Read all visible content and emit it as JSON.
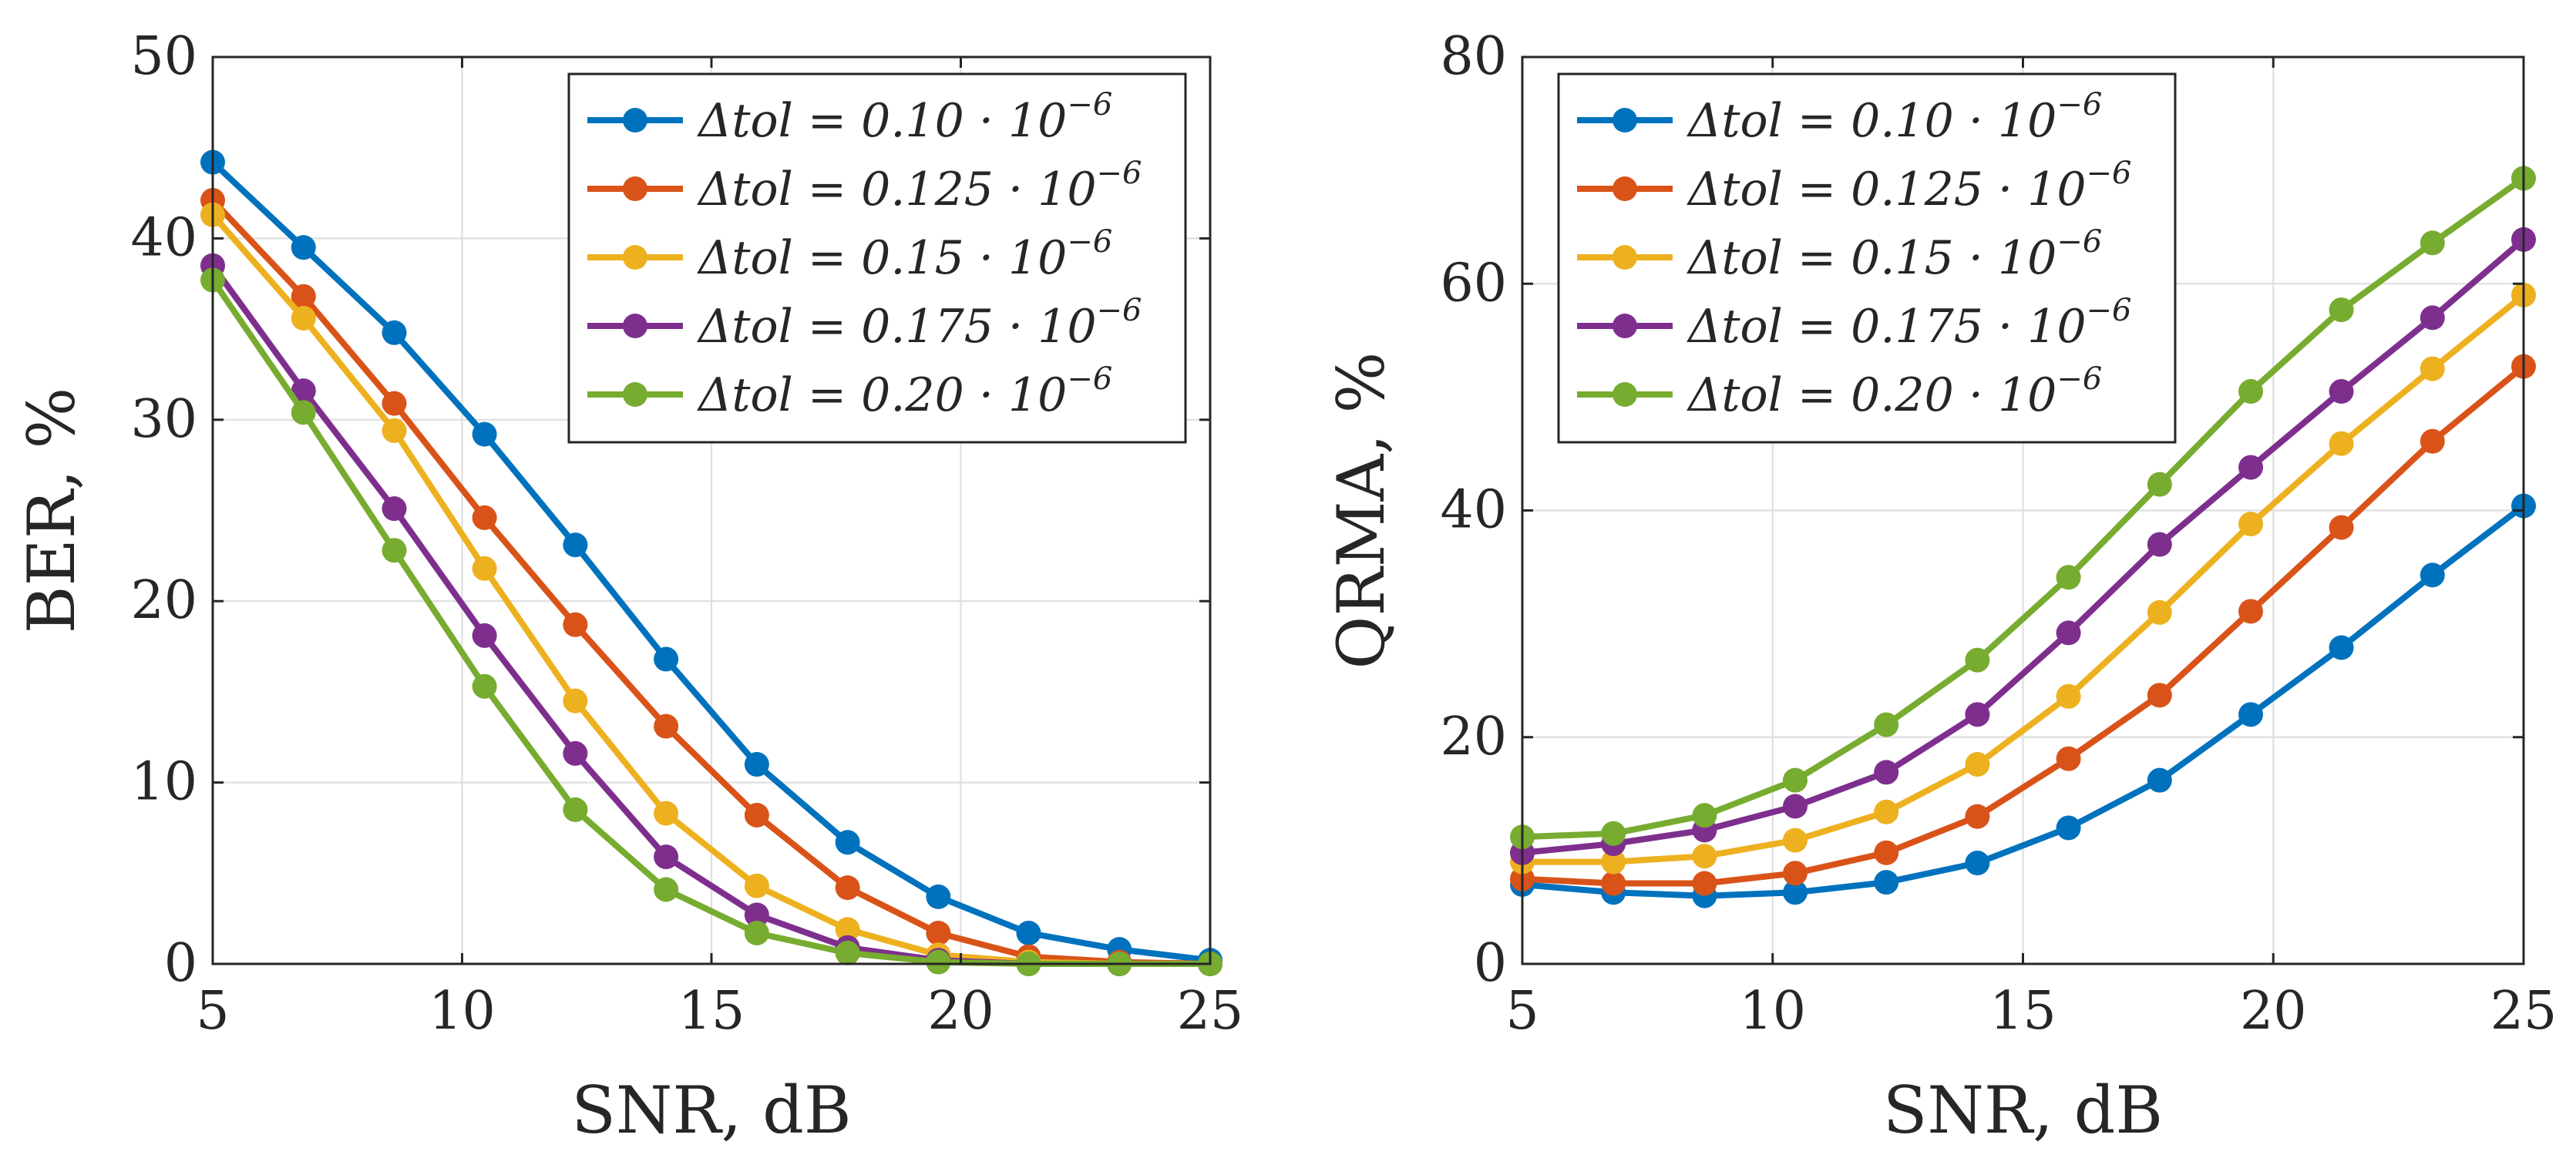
{
  "chart_data": [
    {
      "type": "line",
      "xlabel": "SNR, dB",
      "ylabel": "BER, %",
      "xlim": [
        5,
        25
      ],
      "ylim": [
        0,
        50
      ],
      "xticks": [
        "5",
        "10",
        "15",
        "20",
        "25"
      ],
      "yticks": [
        "0",
        "10",
        "20",
        "30",
        "40",
        "50"
      ],
      "grid": true,
      "legend_position": "top-right",
      "x": [
        5,
        6.82,
        8.64,
        10.45,
        12.27,
        14.09,
        15.91,
        17.73,
        19.55,
        21.36,
        23.18,
        25
      ],
      "series": [
        {
          "name": "Δtol = 0.10 · 10",
          "exp": "−6",
          "color": "#0072BD",
          "values": [
            44.2,
            39.5,
            34.8,
            29.2,
            23.1,
            16.8,
            11.0,
            6.7,
            3.7,
            1.7,
            0.8,
            0.2
          ]
        },
        {
          "name": "Δtol = 0.125 · 10",
          "exp": "−6",
          "color": "#D95319",
          "values": [
            42.1,
            36.8,
            30.9,
            24.6,
            18.7,
            13.1,
            8.2,
            4.2,
            1.7,
            0.4,
            0.1,
            0.0
          ]
        },
        {
          "name": "Δtol = 0.15 · 10",
          "exp": "−6",
          "color": "#EDB120",
          "values": [
            41.3,
            35.6,
            29.4,
            21.8,
            14.5,
            8.3,
            4.3,
            1.9,
            0.5,
            0.1,
            0.0,
            0.0
          ]
        },
        {
          "name": "Δtol = 0.175 · 10",
          "exp": "−6",
          "color": "#7E2F8E",
          "values": [
            38.5,
            31.6,
            25.1,
            18.1,
            11.6,
            5.9,
            2.7,
            0.9,
            0.2,
            0.0,
            0.0,
            0.0
          ]
        },
        {
          "name": "Δtol = 0.20 · 10",
          "exp": "−6",
          "color": "#77AC30",
          "values": [
            37.7,
            30.4,
            22.8,
            15.3,
            8.5,
            4.1,
            1.7,
            0.6,
            0.1,
            0.0,
            0.0,
            0.0
          ]
        }
      ]
    },
    {
      "type": "line",
      "xlabel": "SNR, dB",
      "ylabel": "QRMA, %",
      "xlim": [
        5,
        25
      ],
      "ylim": [
        0,
        80
      ],
      "xticks": [
        "5",
        "10",
        "15",
        "20",
        "25"
      ],
      "yticks": [
        "0",
        "20",
        "40",
        "60",
        "80"
      ],
      "grid": true,
      "legend_position": "top-left",
      "x": [
        5,
        6.82,
        8.64,
        10.45,
        12.27,
        14.09,
        15.91,
        17.73,
        19.55,
        21.36,
        23.18,
        25
      ],
      "series": [
        {
          "name": "Δtol = 0.10 · 10",
          "exp": "−6",
          "color": "#0072BD",
          "values": [
            7.0,
            6.3,
            6.0,
            6.3,
            7.2,
            8.9,
            12.0,
            16.2,
            22.0,
            27.9,
            34.3,
            40.4
          ]
        },
        {
          "name": "Δtol = 0.125 · 10",
          "exp": "−6",
          "color": "#D95319",
          "values": [
            7.5,
            7.1,
            7.1,
            8.0,
            9.8,
            13.0,
            18.1,
            23.7,
            31.1,
            38.5,
            46.1,
            52.7
          ]
        },
        {
          "name": "Δtol = 0.15 · 10",
          "exp": "−6",
          "color": "#EDB120",
          "values": [
            9.0,
            9.0,
            9.5,
            10.9,
            13.4,
            17.6,
            23.6,
            31.0,
            38.8,
            45.9,
            52.5,
            59.0
          ]
        },
        {
          "name": "Δtol = 0.175 · 10",
          "exp": "−6",
          "color": "#7E2F8E",
          "values": [
            9.8,
            10.6,
            11.8,
            13.9,
            16.9,
            22.0,
            29.2,
            37.0,
            43.8,
            50.5,
            57.0,
            63.9
          ]
        },
        {
          "name": "Δtol = 0.20 · 10",
          "exp": "−6",
          "color": "#77AC30",
          "values": [
            11.2,
            11.5,
            13.1,
            16.2,
            21.1,
            26.8,
            34.1,
            42.3,
            50.5,
            57.7,
            63.6,
            69.3
          ]
        }
      ]
    }
  ]
}
